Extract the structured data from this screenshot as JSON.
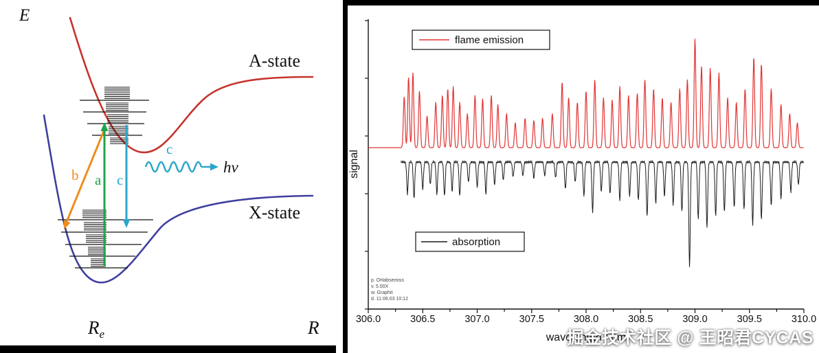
{
  "left_diagram": {
    "energy_label": "E",
    "a_state_label": "A-state",
    "x_state_label": "X-state",
    "transition_a_label": "a",
    "transition_b_label": "b",
    "transition_c_label": "c",
    "photon_c_label": "c",
    "photon_energy_label": "hν",
    "re_label_main": "R",
    "re_label_sub": "e",
    "r_label": "R",
    "colors": {
      "a_state_curve": "#c4342b",
      "x_state_curve": "#3f3f9f",
      "arrow_a": "#1fa34c",
      "arrow_b": "#ee8d1e",
      "arrow_c": "#2ba6c9"
    }
  },
  "chart_data": {
    "type": "line",
    "title": "",
    "xlabel": "wavelength / nm",
    "ylabel": "signal",
    "xlim": [
      306.0,
      310.0
    ],
    "x_ticks": [
      306.0,
      306.5,
      307.0,
      307.5,
      308.0,
      308.5,
      309.0,
      309.5,
      310.0
    ],
    "grid": false,
    "legend": [
      {
        "label": "flame emission",
        "color": "#e23333",
        "position": "top-left-box"
      },
      {
        "label": "absorption",
        "color": "#1a1a1a",
        "position": "bottom-left-box"
      }
    ],
    "annotations": [
      "p. OHabsemiss",
      "v. 5.00X",
      "w. Graphit",
      "d. 11.06.03 10:12"
    ],
    "series": [
      {
        "name": "flame emission",
        "color": "#e23333",
        "style": "peaks-up-from-baseline",
        "peaks": [
          [
            306.33,
            0.45
          ],
          [
            306.37,
            0.62
          ],
          [
            306.41,
            0.66
          ],
          [
            306.47,
            0.5
          ],
          [
            306.54,
            0.28
          ],
          [
            306.62,
            0.4
          ],
          [
            306.68,
            0.46
          ],
          [
            306.73,
            0.52
          ],
          [
            306.78,
            0.54
          ],
          [
            306.84,
            0.4
          ],
          [
            306.91,
            0.3
          ],
          [
            306.98,
            0.46
          ],
          [
            307.05,
            0.43
          ],
          [
            307.13,
            0.46
          ],
          [
            307.19,
            0.38
          ],
          [
            307.27,
            0.3
          ],
          [
            307.35,
            0.22
          ],
          [
            307.44,
            0.26
          ],
          [
            307.52,
            0.24
          ],
          [
            307.6,
            0.26
          ],
          [
            307.69,
            0.3
          ],
          [
            307.78,
            0.58
          ],
          [
            307.84,
            0.44
          ],
          [
            307.92,
            0.4
          ],
          [
            308.0,
            0.5
          ],
          [
            308.08,
            0.6
          ],
          [
            308.16,
            0.44
          ],
          [
            308.24,
            0.42
          ],
          [
            308.31,
            0.54
          ],
          [
            308.39,
            0.46
          ],
          [
            308.47,
            0.48
          ],
          [
            308.54,
            0.6
          ],
          [
            308.62,
            0.52
          ],
          [
            308.7,
            0.44
          ],
          [
            308.78,
            0.4
          ],
          [
            308.86,
            0.52
          ],
          [
            308.93,
            0.6
          ],
          [
            309.0,
            0.96
          ],
          [
            309.06,
            0.72
          ],
          [
            309.14,
            0.7
          ],
          [
            309.22,
            0.66
          ],
          [
            309.3,
            0.44
          ],
          [
            309.38,
            0.4
          ],
          [
            309.46,
            0.52
          ],
          [
            309.54,
            0.8
          ],
          [
            309.61,
            0.74
          ],
          [
            309.7,
            0.52
          ],
          [
            309.79,
            0.38
          ],
          [
            309.87,
            0.3
          ],
          [
            309.94,
            0.22
          ]
        ]
      },
      {
        "name": "absorption",
        "color": "#1a1a1a",
        "style": "dips-down-from-baseline",
        "dips": [
          [
            306.36,
            0.28
          ],
          [
            306.42,
            0.32
          ],
          [
            306.5,
            0.24
          ],
          [
            306.57,
            0.2
          ],
          [
            306.63,
            0.28
          ],
          [
            306.7,
            0.3
          ],
          [
            306.77,
            0.26
          ],
          [
            306.84,
            0.3
          ],
          [
            306.92,
            0.18
          ],
          [
            307.0,
            0.22
          ],
          [
            307.08,
            0.28
          ],
          [
            307.16,
            0.2
          ],
          [
            307.24,
            0.16
          ],
          [
            307.33,
            0.13
          ],
          [
            307.42,
            0.12
          ],
          [
            307.52,
            0.14
          ],
          [
            307.62,
            0.12
          ],
          [
            307.72,
            0.14
          ],
          [
            307.81,
            0.24
          ],
          [
            307.9,
            0.18
          ],
          [
            307.98,
            0.3
          ],
          [
            308.06,
            0.44
          ],
          [
            308.14,
            0.26
          ],
          [
            308.22,
            0.28
          ],
          [
            308.31,
            0.34
          ],
          [
            308.4,
            0.3
          ],
          [
            308.48,
            0.34
          ],
          [
            308.56,
            0.48
          ],
          [
            308.64,
            0.36
          ],
          [
            308.72,
            0.3
          ],
          [
            308.8,
            0.38
          ],
          [
            308.88,
            0.44
          ],
          [
            308.95,
            0.92
          ],
          [
            309.03,
            0.5
          ],
          [
            309.11,
            0.58
          ],
          [
            309.19,
            0.48
          ],
          [
            309.27,
            0.44
          ],
          [
            309.36,
            0.4
          ],
          [
            309.45,
            0.42
          ],
          [
            309.53,
            0.55
          ],
          [
            309.61,
            0.5
          ],
          [
            309.7,
            0.38
          ],
          [
            309.79,
            0.32
          ],
          [
            309.88,
            0.26
          ],
          [
            309.95,
            0.2
          ]
        ]
      }
    ]
  },
  "watermark": "掘金技术社区 @ 王昭君CYCAS"
}
